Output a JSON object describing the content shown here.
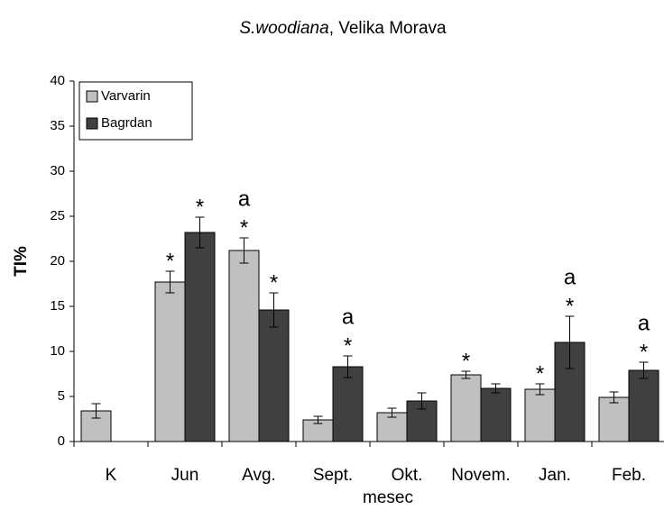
{
  "chart_data": {
    "type": "bar",
    "title": [
      "S.woodiana",
      ", Velika Morava"
    ],
    "y_label": "TI%",
    "x_label": "mesec",
    "categories": [
      "K",
      "Jun",
      "Avg.",
      "Sept.",
      "Okt.",
      "Novem.",
      "Jan.",
      "Feb."
    ],
    "series": [
      {
        "name": "Varvarin",
        "color": "#c0c0c0",
        "values": [
          3.4,
          17.7,
          21.2,
          2.4,
          3.2,
          7.4,
          5.8,
          4.9
        ],
        "errors": [
          0.8,
          1.2,
          1.4,
          0.4,
          0.5,
          0.4,
          0.6,
          0.6
        ],
        "annotations": [
          null,
          [
            "*"
          ],
          [
            "a",
            "*"
          ],
          null,
          null,
          [
            "*"
          ],
          [
            "*"
          ],
          null
        ]
      },
      {
        "name": "Bagrdan",
        "color": "#404040",
        "values": [
          null,
          23.2,
          14.6,
          8.3,
          4.5,
          5.9,
          11.0,
          7.9
        ],
        "errors": [
          null,
          1.7,
          1.9,
          1.2,
          0.9,
          0.5,
          2.9,
          0.9
        ],
        "annotations": [
          null,
          [
            "*"
          ],
          [
            "*"
          ],
          [
            "a",
            "*"
          ],
          null,
          null,
          [
            "a",
            "*"
          ],
          [
            "a",
            "*"
          ]
        ]
      }
    ],
    "ylim": [
      0,
      40
    ],
    "yticks": [
      0,
      5,
      10,
      15,
      20,
      25,
      30,
      35,
      40
    ],
    "legend": "top-left"
  }
}
